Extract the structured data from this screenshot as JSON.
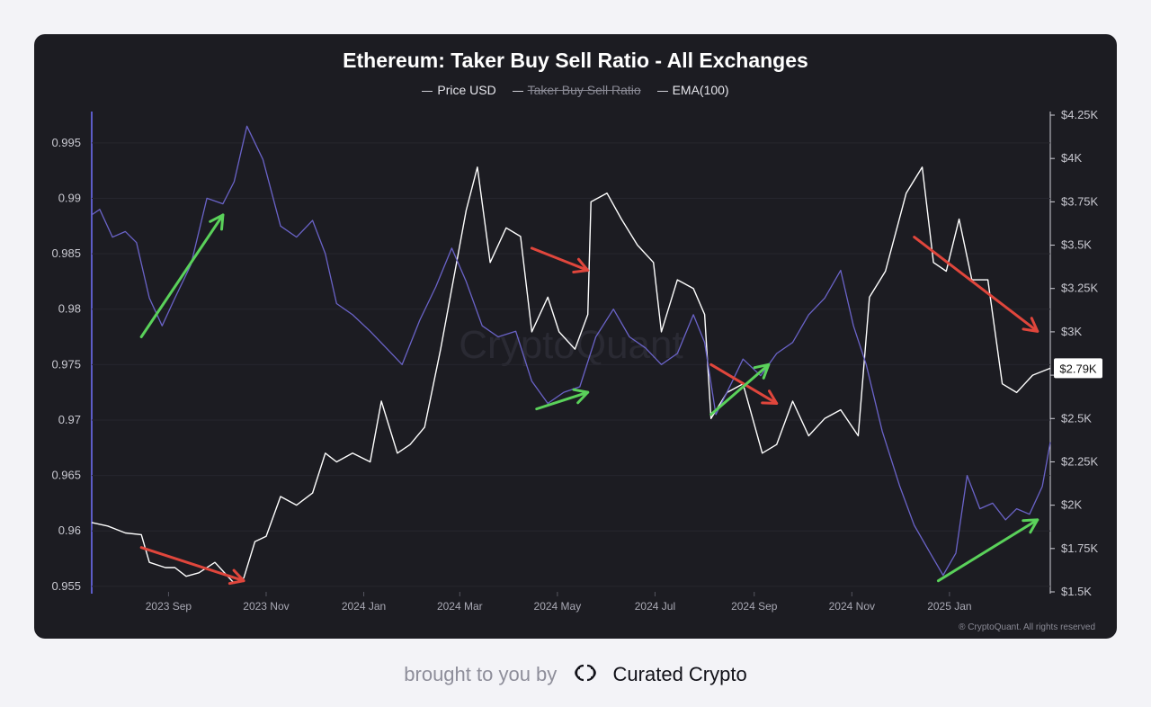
{
  "footer": {
    "prefix": "brought to you by",
    "brand": "Curated Crypto",
    "brand_logo_icon": "double-c-logo-icon"
  },
  "colors": {
    "background": "#1c1c22",
    "price": "#ffffff",
    "ratio": "#6a63c8",
    "arrow_green": "#5ad15a",
    "arrow_red": "#e0463c"
  },
  "chart_data": {
    "type": "line",
    "title": "Ethereum: Taker Buy Sell Ratio - All Exchanges",
    "legend": [
      {
        "label": "Price USD",
        "active": true
      },
      {
        "label": "Taker Buy Sell Ratio",
        "active": false
      },
      {
        "label": "EMA(100)",
        "active": true
      }
    ],
    "x_start": "2023-07-15",
    "x_end": "2025-03-05",
    "x_ticks": [
      {
        "label": "2023 Sep",
        "date": "2023-09-01"
      },
      {
        "label": "2023 Nov",
        "date": "2023-11-01"
      },
      {
        "label": "2024 Jan",
        "date": "2024-01-01"
      },
      {
        "label": "2024 Mar",
        "date": "2024-03-01"
      },
      {
        "label": "2024 May",
        "date": "2024-05-01"
      },
      {
        "label": "2024 Jul",
        "date": "2024-07-01"
      },
      {
        "label": "2024 Sep",
        "date": "2024-09-01"
      },
      {
        "label": "2024 Nov",
        "date": "2024-11-01"
      },
      {
        "label": "2025 Jan",
        "date": "2025-01-01"
      }
    ],
    "y_left": {
      "ticks": [
        0.955,
        0.96,
        0.965,
        0.97,
        0.975,
        0.98,
        0.985,
        0.99,
        0.995
      ],
      "tick_labels": [
        "0.955",
        "0.96",
        "0.965",
        "0.97",
        "0.975",
        "0.98",
        "0.985",
        "0.99",
        "0.995"
      ],
      "range": [
        0.9545,
        0.9975
      ]
    },
    "y_right": {
      "ticks": [
        1500,
        1750,
        2000,
        2250,
        2500,
        2750,
        3000,
        3250,
        3500,
        3750,
        4000,
        4250
      ],
      "tick_labels": [
        "$1.5K",
        "$1.75K",
        "$2K",
        "$2.25K",
        "$2.5K",
        "",
        "$3K",
        "$3.25K",
        "$3.5K",
        "$3.75K",
        "$4K",
        "$4.25K"
      ],
      "range": [
        1500,
        4250
      ],
      "current_label": "$2.79K"
    },
    "series": [
      {
        "name": "Price USD",
        "axis": "right",
        "points": [
          [
            "2023-07-15",
            1900
          ],
          [
            "2023-07-25",
            1880
          ],
          [
            "2023-08-05",
            1840
          ],
          [
            "2023-08-15",
            1830
          ],
          [
            "2023-08-20",
            1670
          ],
          [
            "2023-08-30",
            1640
          ],
          [
            "2023-09-05",
            1640
          ],
          [
            "2023-09-12",
            1590
          ],
          [
            "2023-09-20",
            1610
          ],
          [
            "2023-09-30",
            1670
          ],
          [
            "2023-10-05",
            1620
          ],
          [
            "2023-10-12",
            1550
          ],
          [
            "2023-10-18",
            1580
          ],
          [
            "2023-10-25",
            1790
          ],
          [
            "2023-11-01",
            1820
          ],
          [
            "2023-11-10",
            2050
          ],
          [
            "2023-11-20",
            2000
          ],
          [
            "2023-11-30",
            2070
          ],
          [
            "2023-12-08",
            2300
          ],
          [
            "2023-12-15",
            2250
          ],
          [
            "2023-12-25",
            2300
          ],
          [
            "2024-01-05",
            2250
          ],
          [
            "2024-01-12",
            2600
          ],
          [
            "2024-01-22",
            2300
          ],
          [
            "2024-01-30",
            2350
          ],
          [
            "2024-02-08",
            2450
          ],
          [
            "2024-02-18",
            2900
          ],
          [
            "2024-02-28",
            3400
          ],
          [
            "2024-03-05",
            3700
          ],
          [
            "2024-03-12",
            3950
          ],
          [
            "2024-03-20",
            3400
          ],
          [
            "2024-03-30",
            3600
          ],
          [
            "2024-04-08",
            3550
          ],
          [
            "2024-04-15",
            3000
          ],
          [
            "2024-04-25",
            3200
          ],
          [
            "2024-05-02",
            3000
          ],
          [
            "2024-05-12",
            2900
          ],
          [
            "2024-05-20",
            3100
          ],
          [
            "2024-05-22",
            3750
          ],
          [
            "2024-06-01",
            3800
          ],
          [
            "2024-06-10",
            3650
          ],
          [
            "2024-06-20",
            3500
          ],
          [
            "2024-06-30",
            3400
          ],
          [
            "2024-07-05",
            3000
          ],
          [
            "2024-07-15",
            3300
          ],
          [
            "2024-07-25",
            3250
          ],
          [
            "2024-08-01",
            3100
          ],
          [
            "2024-08-05",
            2500
          ],
          [
            "2024-08-15",
            2650
          ],
          [
            "2024-08-25",
            2700
          ],
          [
            "2024-09-06",
            2300
          ],
          [
            "2024-09-15",
            2350
          ],
          [
            "2024-09-25",
            2600
          ],
          [
            "2024-10-05",
            2400
          ],
          [
            "2024-10-15",
            2500
          ],
          [
            "2024-10-25",
            2550
          ],
          [
            "2024-11-05",
            2400
          ],
          [
            "2024-11-12",
            3200
          ],
          [
            "2024-11-22",
            3350
          ],
          [
            "2024-12-05",
            3800
          ],
          [
            "2024-12-15",
            3950
          ],
          [
            "2024-12-22",
            3400
          ],
          [
            "2024-12-30",
            3350
          ],
          [
            "2025-01-07",
            3650
          ],
          [
            "2025-01-15",
            3300
          ],
          [
            "2025-01-25",
            3300
          ],
          [
            "2025-02-03",
            2700
          ],
          [
            "2025-02-12",
            2650
          ],
          [
            "2025-02-22",
            2750
          ],
          [
            "2025-03-05",
            2790
          ]
        ]
      },
      {
        "name": "EMA(100)",
        "axis": "left",
        "points": [
          [
            "2023-07-15",
            0.9885
          ],
          [
            "2023-07-20",
            0.989
          ],
          [
            "2023-07-28",
            0.9865
          ],
          [
            "2023-08-05",
            0.987
          ],
          [
            "2023-08-12",
            0.986
          ],
          [
            "2023-08-20",
            0.981
          ],
          [
            "2023-08-28",
            0.9785
          ],
          [
            "2023-09-05",
            0.981
          ],
          [
            "2023-09-15",
            0.984
          ],
          [
            "2023-09-25",
            0.99
          ],
          [
            "2023-10-05",
            0.9895
          ],
          [
            "2023-10-12",
            0.9915
          ],
          [
            "2023-10-20",
            0.9965
          ],
          [
            "2023-10-30",
            0.9935
          ],
          [
            "2023-11-10",
            0.9875
          ],
          [
            "2023-11-20",
            0.9865
          ],
          [
            "2023-11-30",
            0.988
          ],
          [
            "2023-12-08",
            0.985
          ],
          [
            "2023-12-15",
            0.9805
          ],
          [
            "2023-12-25",
            0.9795
          ],
          [
            "2024-01-05",
            0.978
          ],
          [
            "2024-01-15",
            0.9765
          ],
          [
            "2024-01-25",
            0.975
          ],
          [
            "2024-02-05",
            0.979
          ],
          [
            "2024-02-15",
            0.982
          ],
          [
            "2024-02-25",
            0.9855
          ],
          [
            "2024-03-05",
            0.9825
          ],
          [
            "2024-03-15",
            0.9785
          ],
          [
            "2024-03-25",
            0.9775
          ],
          [
            "2024-04-05",
            0.978
          ],
          [
            "2024-04-15",
            0.9735
          ],
          [
            "2024-04-25",
            0.9715
          ],
          [
            "2024-05-05",
            0.9725
          ],
          [
            "2024-05-15",
            0.973
          ],
          [
            "2024-05-25",
            0.9775
          ],
          [
            "2024-06-05",
            0.98
          ],
          [
            "2024-06-15",
            0.9775
          ],
          [
            "2024-06-25",
            0.9765
          ],
          [
            "2024-07-05",
            0.975
          ],
          [
            "2024-07-15",
            0.976
          ],
          [
            "2024-07-25",
            0.9795
          ],
          [
            "2024-08-01",
            0.977
          ],
          [
            "2024-08-08",
            0.9705
          ],
          [
            "2024-08-15",
            0.9725
          ],
          [
            "2024-08-25",
            0.9755
          ],
          [
            "2024-09-05",
            0.974
          ],
          [
            "2024-09-15",
            0.976
          ],
          [
            "2024-09-25",
            0.977
          ],
          [
            "2024-10-05",
            0.9795
          ],
          [
            "2024-10-15",
            0.981
          ],
          [
            "2024-10-25",
            0.9835
          ],
          [
            "2024-11-02",
            0.9785
          ],
          [
            "2024-11-10",
            0.975
          ],
          [
            "2024-11-20",
            0.969
          ],
          [
            "2024-12-01",
            0.964
          ],
          [
            "2024-12-10",
            0.9605
          ],
          [
            "2024-12-20",
            0.958
          ],
          [
            "2024-12-28",
            0.956
          ],
          [
            "2025-01-05",
            0.958
          ],
          [
            "2025-01-12",
            0.965
          ],
          [
            "2025-01-20",
            0.962
          ],
          [
            "2025-01-28",
            0.9625
          ],
          [
            "2025-02-05",
            0.961
          ],
          [
            "2025-02-12",
            0.962
          ],
          [
            "2025-02-20",
            0.9615
          ],
          [
            "2025-02-28",
            0.964
          ],
          [
            "2025-03-05",
            0.968
          ]
        ]
      }
    ],
    "arrows": [
      {
        "color": "green",
        "from": [
          "2023-08-15",
          0.9775
        ],
        "to": [
          "2023-10-05",
          0.9885
        ]
      },
      {
        "color": "red",
        "from": [
          "2023-08-15",
          0.9585
        ],
        "to": [
          "2023-10-18",
          0.9555
        ]
      },
      {
        "color": "red",
        "from": [
          "2024-04-15",
          0.9855
        ],
        "to": [
          "2024-05-20",
          0.9835
        ]
      },
      {
        "color": "green",
        "from": [
          "2024-04-18",
          0.971
        ],
        "to": [
          "2024-05-20",
          0.9725
        ]
      },
      {
        "color": "red",
        "from": [
          "2024-08-05",
          0.975
        ],
        "to": [
          "2024-09-15",
          0.9715
        ]
      },
      {
        "color": "green",
        "from": [
          "2024-08-05",
          0.9705
        ],
        "to": [
          "2024-09-10",
          0.975
        ]
      },
      {
        "color": "red",
        "from": [
          "2024-12-10",
          0.9865
        ],
        "to": [
          "2025-02-25",
          0.978
        ]
      },
      {
        "color": "green",
        "from": [
          "2024-12-25",
          0.9555
        ],
        "to": [
          "2025-02-25",
          0.961
        ]
      }
    ],
    "watermark": "CryptoQuant",
    "copyright": "® CryptoQuant. All rights reserved",
    "grid": true,
    "legend_position": "top-center"
  }
}
